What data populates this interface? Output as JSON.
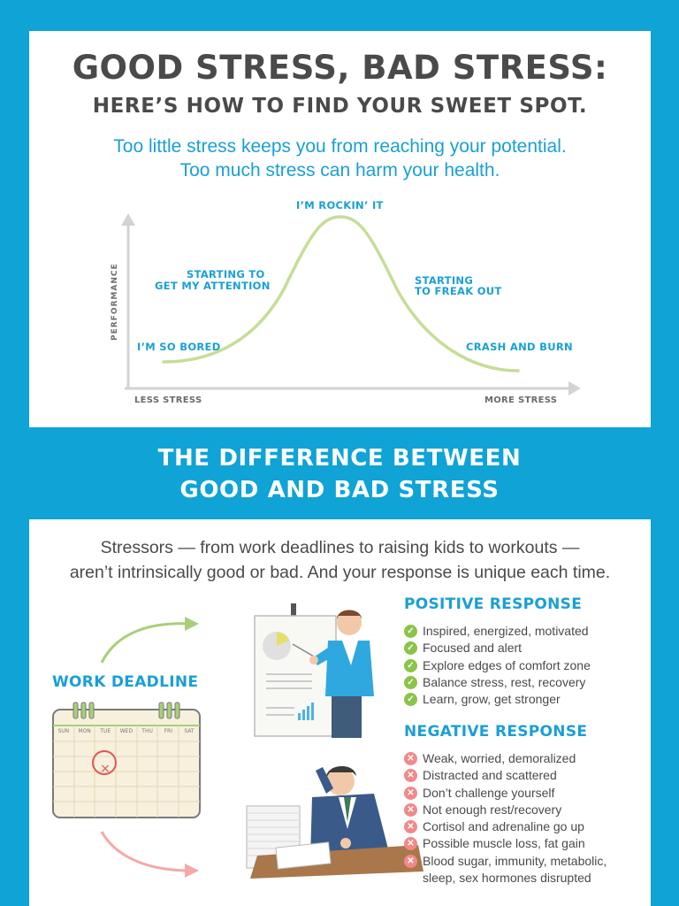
{
  "header": {
    "title": "GOOD STRESS, BAD STRESS:",
    "subtitle": "HERE’S HOW TO FIND YOUR SWEET SPOT.",
    "intro_line1": "Too little stress keeps you from reaching your potential.",
    "intro_line2": "Too much stress can harm your health."
  },
  "curve": {
    "y_axis": "PERFORMANCE",
    "x_axis_left": "LESS STRESS",
    "x_axis_right": "MORE STRESS",
    "labels": {
      "bored": "I’M SO BORED",
      "attention_1": "STARTING TO",
      "attention_2": "GET MY ATTENTION",
      "rockin": "I’M ROCKIN’ IT",
      "freak_1": "STARTING",
      "freak_2": "TO FREAK OUT",
      "crash": "CRASH AND BURN"
    },
    "colors": {
      "curve": "#c6dd97",
      "axis": "#d3d3d3",
      "label": "#1a9fd6"
    }
  },
  "section": {
    "title_line1": "THE DIFFERENCE BETWEEN",
    "title_line2": "GOOD AND BAD STRESS",
    "intro_line1": "Stressors — from work deadlines to raising kids to workouts —",
    "intro_line2": "aren’t intrinsically good or bad. And your response is unique each time."
  },
  "work_deadline": {
    "label": "WORK DEADLINE",
    "calendar_days": [
      "SUN",
      "MON",
      "TUE",
      "WED",
      "THU",
      "FRI",
      "SAT"
    ],
    "mark": "×"
  },
  "positive": {
    "title": "POSITIVE RESPONSE",
    "icon": "check-icon",
    "items": [
      "Inspired, energized, motivated",
      "Focused and alert",
      "Explore edges of comfort zone",
      "Balance stress, rest, recovery",
      "Learn, grow, get stronger"
    ]
  },
  "negative": {
    "title": "NEGATIVE RESPONSE",
    "icon": "x-icon",
    "items": [
      "Weak, worried, demoralized",
      "Distracted and scattered",
      "Don’t challenge yourself",
      "Not enough rest/recovery",
      "Cortisol and adrenaline go up",
      "Possible muscle loss, fat gain",
      "Blood sugar, immunity, metabolic,"
    ],
    "continuation": "sleep, sex hormones disrupted"
  },
  "colors": {
    "background": "#0fa3d6",
    "accent": "#1a9fd6",
    "text": "#4a4a4a",
    "positive": "#8cc34a",
    "negative": "#f08a8a"
  }
}
